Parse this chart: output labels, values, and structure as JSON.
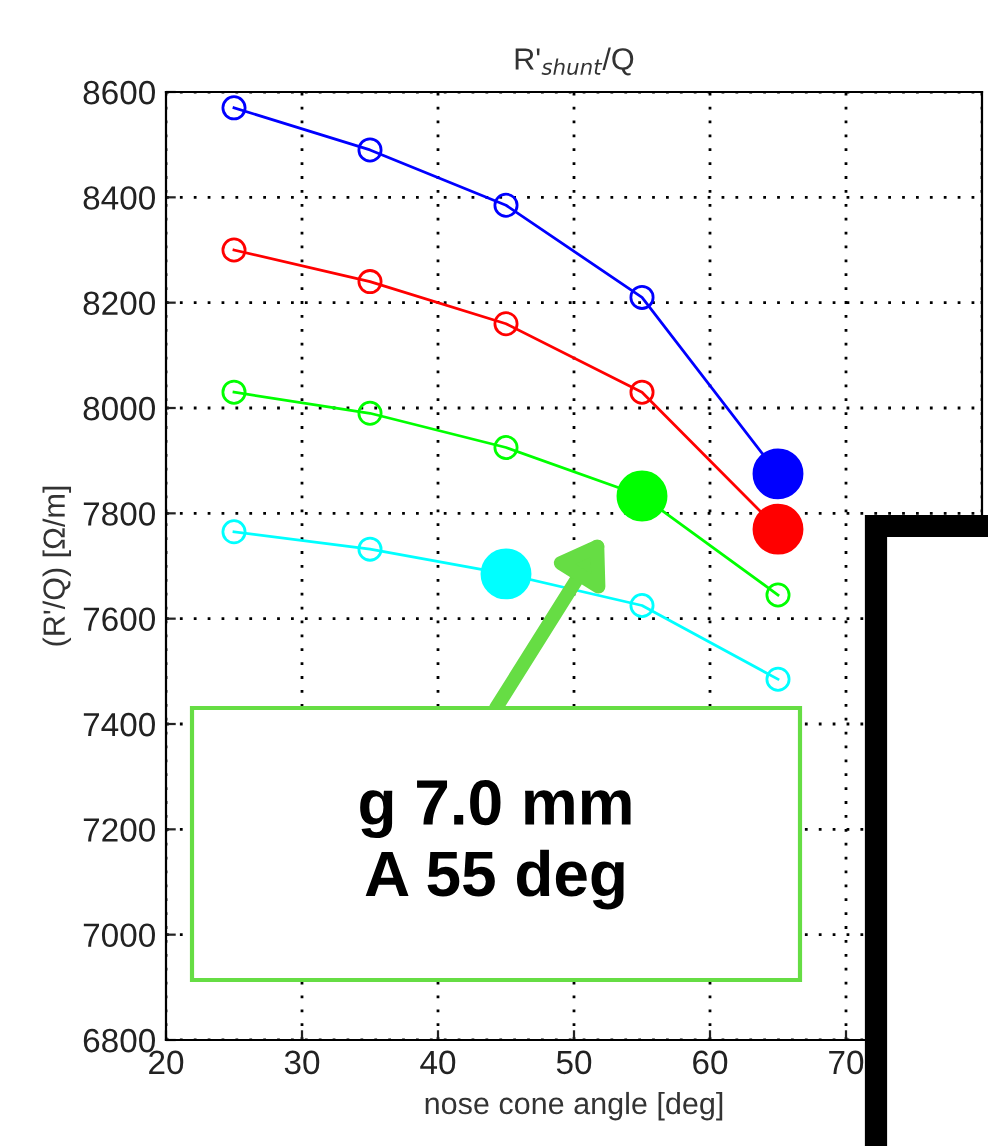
{
  "chart_data": {
    "type": "line",
    "title": "R'$_{shunt}$/Q",
    "xlabel": "nose cone angle [deg]",
    "ylabel": "(R'/Q) [Ω/m]",
    "xlim": [
      20,
      80
    ],
    "xticks": [
      20,
      30,
      40,
      50,
      60,
      70,
      {
        "value": 80,
        "label": null
      }
    ],
    "ylim": [
      6800,
      8600
    ],
    "yticks": [
      6800,
      7000,
      7200,
      7400,
      7600,
      7800,
      8000,
      8200,
      8400,
      8600
    ],
    "grid": true,
    "marker": "circle",
    "line_style": "solid",
    "series": [
      {
        "color": "#0000ff",
        "x": [
          25,
          35,
          45,
          55,
          65
        ],
        "values": [
          8570,
          8490,
          8385,
          8210,
          7875
        ]
      },
      {
        "color": "#ff0000",
        "x": [
          25,
          35,
          45,
          55,
          65
        ],
        "values": [
          8300,
          8240,
          8160,
          8030,
          7770
        ]
      },
      {
        "color": "#00ff00",
        "x": [
          25,
          35,
          45,
          55,
          65
        ],
        "values": [
          8030,
          7990,
          7925,
          7833,
          7645
        ]
      },
      {
        "color": "#00ffff",
        "x": [
          25,
          35,
          45,
          55,
          65
        ],
        "values": [
          7765,
          7732,
          7685,
          7625,
          7485
        ]
      },
      {
        "type": "scatter",
        "color": "#0000ff",
        "x": [
          65
        ],
        "values": [
          7875
        ]
      },
      {
        "type": "scatter",
        "color": "#ff0000",
        "x": [
          65
        ],
        "values": [
          7770
        ]
      },
      {
        "type": "scatter",
        "color": "#00ff00",
        "x": [
          55
        ],
        "values": [
          7833
        ]
      },
      {
        "type": "scatter",
        "color": "#00ffff",
        "x": [
          45
        ],
        "values": [
          7685
        ]
      }
    ],
    "annotations": [
      "g 7.0 mm\nA 55 deg"
    ]
  }
}
